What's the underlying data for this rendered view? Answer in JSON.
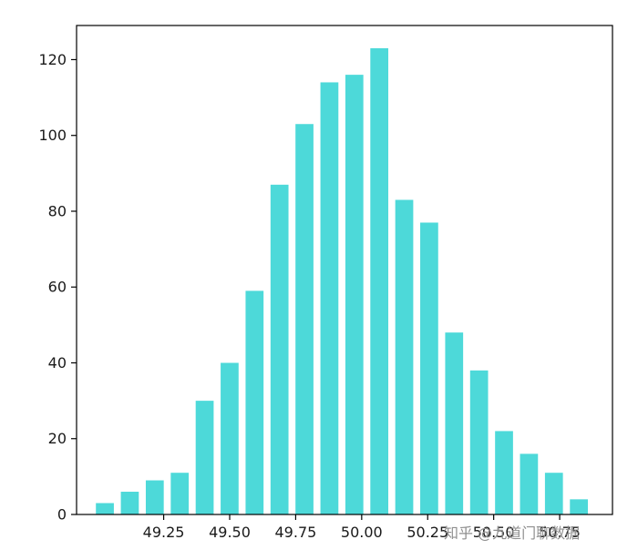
{
  "watermark": "知乎 @九道门聊数据",
  "chart_data": {
    "type": "bar",
    "subtype": "histogram",
    "title": "",
    "xlabel": "",
    "ylabel": "",
    "bar_color": "#4dd9d9",
    "background_color": "#ffffff",
    "frame_color": "#000000",
    "tick_label_color": "#1a1a1a",
    "grid": false,
    "legend": null,
    "bin_start": 48.98,
    "bin_width": 0.0945,
    "bar_rwidth": 0.72,
    "counts": [
      3,
      6,
      9,
      11,
      30,
      40,
      59,
      87,
      103,
      114,
      116,
      123,
      83,
      77,
      48,
      38,
      22,
      16,
      11,
      4
    ],
    "xlim": [
      48.92,
      50.95
    ],
    "ylim": [
      0,
      129
    ],
    "xtick_values": [
      49.25,
      49.5,
      49.75,
      50.0,
      50.25,
      50.5,
      50.75
    ],
    "xtick_labels": [
      "49.25",
      "49.50",
      "49.75",
      "50.00",
      "50.25",
      "50.50",
      "50.75"
    ],
    "ytick_values": [
      0,
      20,
      40,
      60,
      80,
      100,
      120
    ],
    "ytick_labels": [
      "0",
      "20",
      "40",
      "60",
      "80",
      "100",
      "120"
    ]
  }
}
